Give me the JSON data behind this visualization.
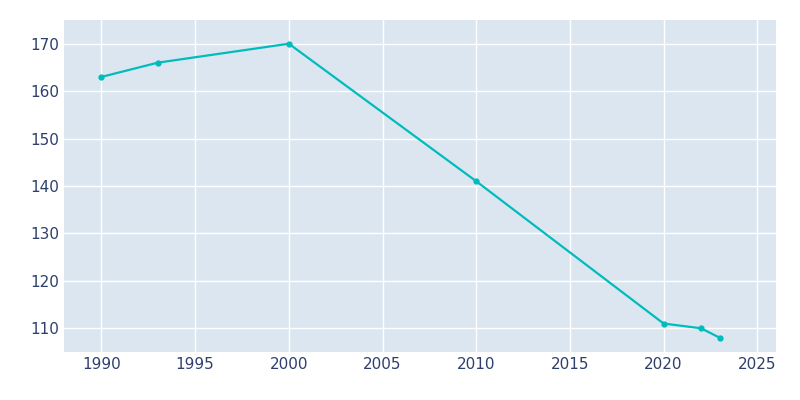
{
  "years": [
    1990,
    1993,
    2000,
    2010,
    2020,
    2022,
    2023
  ],
  "population": [
    163,
    166,
    170,
    141,
    111,
    110,
    108
  ],
  "line_color": "#00bcbc",
  "marker": "o",
  "marker_size": 3.5,
  "line_width": 1.6,
  "figure_background_color": "#ffffff",
  "plot_background_color": "#dce6f0",
  "grid_color": "#ffffff",
  "tick_label_color": "#2e3f6e",
  "xlim": [
    1988,
    2026
  ],
  "ylim": [
    105,
    175
  ],
  "xticks": [
    1990,
    1995,
    2000,
    2005,
    2010,
    2015,
    2020,
    2025
  ],
  "yticks": [
    110,
    120,
    130,
    140,
    150,
    160,
    170
  ],
  "tick_fontsize": 11
}
